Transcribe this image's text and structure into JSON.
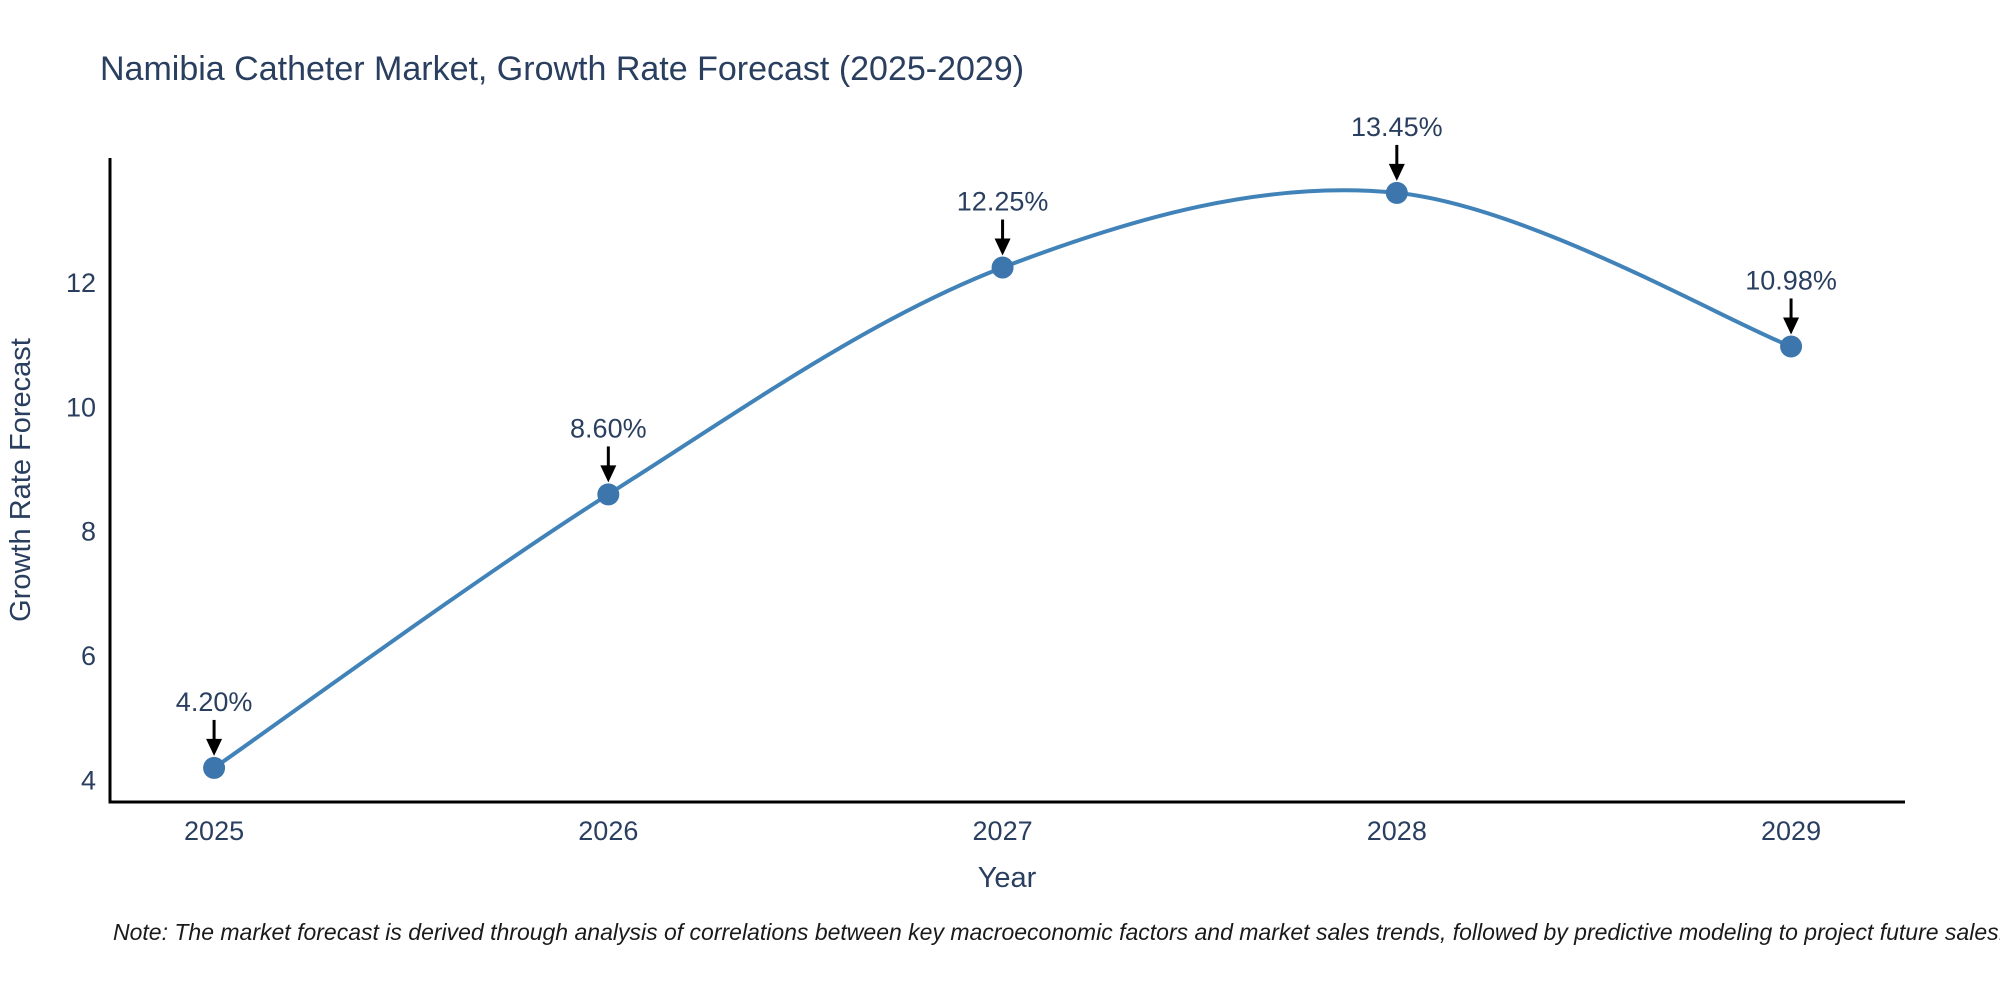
{
  "title": "Namibia Catheter Market, Growth Rate Forecast (2025-2029)",
  "note": "Note: The market forecast is derived through analysis of correlations between key macroeconomic factors and market sales trends, followed by predictive modeling to project future sales.",
  "colors": {
    "line": "#4183b9",
    "marker": "#3c76ad",
    "axis": "#000000",
    "arrow": "#000000",
    "heading_text": "#2a3f5f",
    "tick_text": "#2a3f5f",
    "annotation_text": "#2a3f5f",
    "note_text": "#1a1a1a",
    "background": "#ffffff"
  },
  "chart_data": {
    "type": "line",
    "line_shape": "spline",
    "title": "Namibia Catheter Market, Growth Rate Forecast (2025-2029)",
    "xlabel": "Year",
    "ylabel": "Growth Rate Forecast",
    "categories": [
      "2025",
      "2026",
      "2027",
      "2028",
      "2029"
    ],
    "x": [
      2025,
      2026,
      2027,
      2028,
      2029
    ],
    "values": [
      4.2,
      8.6,
      12.25,
      13.45,
      10.98
    ],
    "point_labels": [
      "4.20%",
      "8.60%",
      "12.25%",
      "13.45%",
      "10.98%"
    ],
    "yticks": [
      4,
      6,
      8,
      10,
      12
    ],
    "xlim": [
      2024.736,
      2029.289
    ],
    "ylim": [
      3.652,
      14.012
    ],
    "grid": false,
    "legend": false,
    "annotations": "black down-arrows from each percent label to its data point marker"
  }
}
